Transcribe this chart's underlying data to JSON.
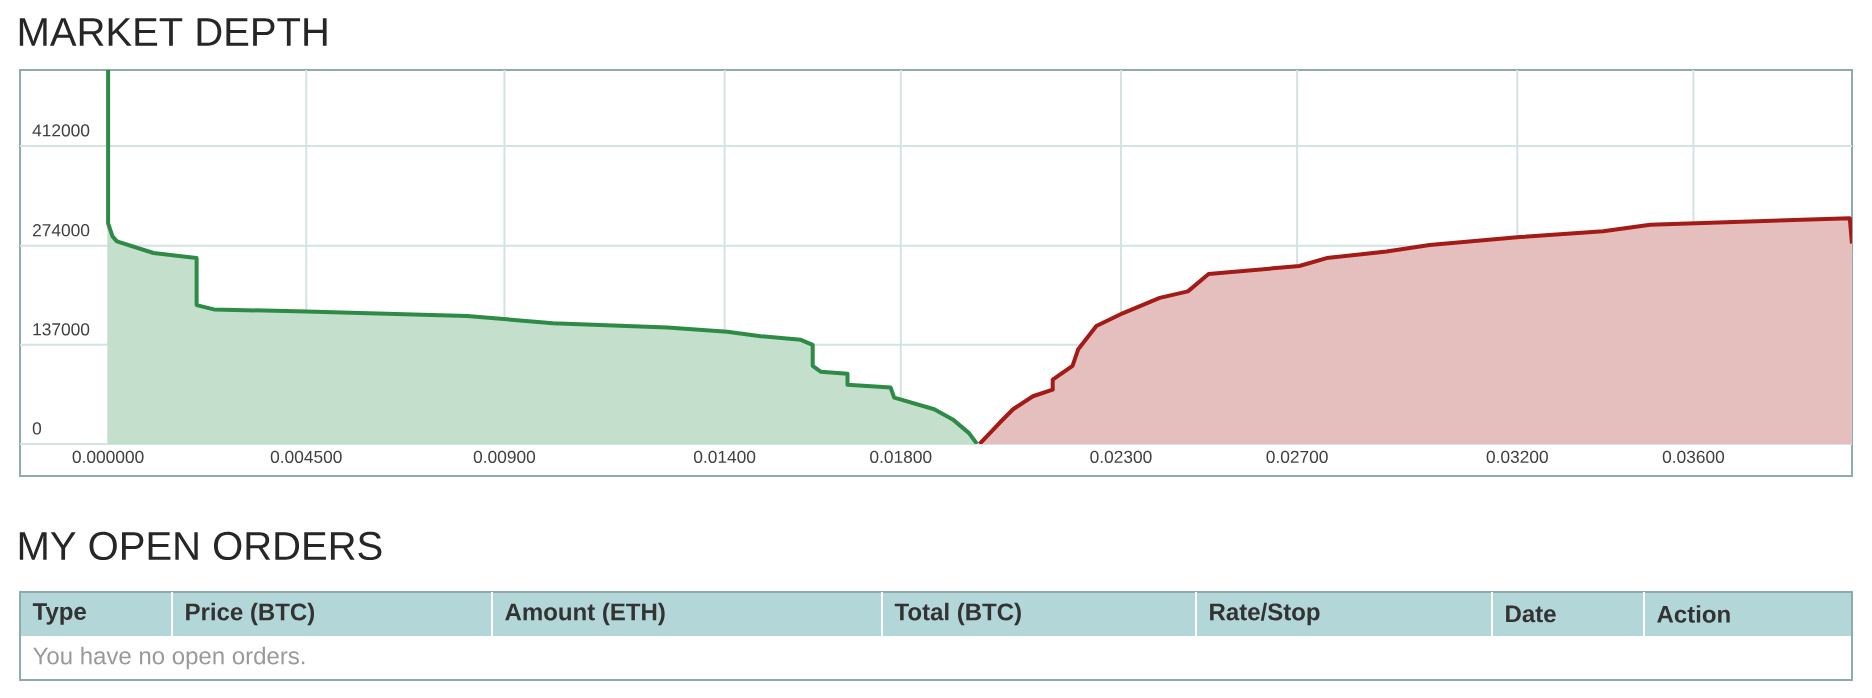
{
  "chart_data": {
    "type": "area",
    "title": "MARKET DEPTH",
    "annotations": [
      "MY OPEN ORDERS",
      "Type",
      "Price (BTC)",
      "Amount (ETH)",
      "Total (BTC)",
      "Rate/Stop",
      "Date",
      "Action",
      "You have no open orders."
    ],
    "xlim": [
      -0.002,
      0.0396
    ],
    "ylim": [
      0,
      517000
    ],
    "xticks": [
      {
        "value": 0,
        "label": "0.000000"
      },
      {
        "value": 0.0045,
        "label": "0.004500"
      },
      {
        "value": 0.009,
        "label": "0.00900"
      },
      {
        "value": 0.014,
        "label": "0.01400"
      },
      {
        "value": 0.018,
        "label": "0.01800"
      },
      {
        "value": 0.023,
        "label": "0.02300"
      },
      {
        "value": 0.027,
        "label": "0.02700"
      },
      {
        "value": 0.032,
        "label": "0.03200"
      },
      {
        "value": 0.036,
        "label": "0.03600"
      }
    ],
    "yticks": [
      0,
      137000,
      274000,
      412000
    ],
    "grid": true,
    "series": [
      {
        "color": "#2e8b46",
        "x": [
          0,
          0,
          0.0001,
          0.0002,
          0.00103,
          0.00201,
          0.00201,
          0.0024,
          0.00451,
          0.00815,
          0.0101,
          0.0127,
          0.01406,
          0.01482,
          0.01573,
          0.016,
          0.016,
          0.01618,
          0.01679,
          0.01679,
          0.01777,
          0.01785,
          0.01876,
          0.01918,
          0.01955,
          0.01973
        ],
        "values": [
          517000,
          305000,
          287000,
          280000,
          264000,
          257000,
          192000,
          186000,
          183000,
          177000,
          167000,
          161000,
          155000,
          149000,
          144000,
          137000,
          108000,
          100000,
          97000,
          82000,
          78000,
          64000,
          48000,
          34000,
          15000,
          0
        ]
      },
      {
        "color": "#a31b17",
        "x": [
          0.01979,
          0.02024,
          0.02055,
          0.021,
          0.02145,
          0.02145,
          0.0219,
          0.02203,
          0.02244,
          0.02305,
          0.02388,
          0.02452,
          0.02499,
          0.02705,
          0.02767,
          0.02903,
          0.03001,
          0.03206,
          0.03395,
          0.03502,
          0.03691,
          0.03955,
          0.0396
        ],
        "values": [
          0,
          29000,
          48000,
          66000,
          75000,
          89000,
          108000,
          131000,
          163000,
          181000,
          202000,
          211000,
          235000,
          246000,
          257000,
          266000,
          275000,
          286000,
          294000,
          303000,
          307000,
          312000,
          277000
        ]
      }
    ]
  }
}
